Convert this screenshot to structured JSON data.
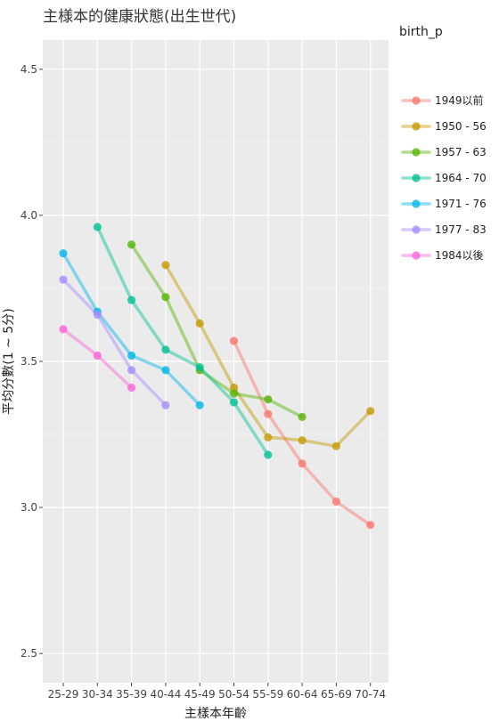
{
  "chart_data": {
    "type": "line",
    "title": "主様本的健康狀態(出生世代)",
    "xlabel": "主樣本年齡",
    "ylabel": "平均分數(1 ~ 5分)",
    "categories": [
      "25-29",
      "30-34",
      "35-39",
      "40-44",
      "45-49",
      "50-54",
      "55-59",
      "60-64",
      "65-69",
      "70-74"
    ],
    "ylim": [
      2.4,
      4.6
    ],
    "yticks": [
      2.5,
      3.0,
      3.5,
      4.0,
      4.5
    ],
    "ytick_labels": [
      "2.5",
      "3.0",
      "3.5",
      "4.0",
      "4.5"
    ],
    "grid": true,
    "legend": {
      "title": "birth_p",
      "placement": "right"
    },
    "series": [
      {
        "name": "1949以前",
        "color": "#F8766D",
        "values": [
          null,
          null,
          null,
          null,
          null,
          3.57,
          3.32,
          3.15,
          3.02,
          2.94
        ]
      },
      {
        "name": "1950 - 56",
        "color": "#C49A00",
        "values": [
          null,
          null,
          null,
          3.83,
          3.63,
          3.41,
          3.24,
          3.23,
          3.21,
          3.33
        ]
      },
      {
        "name": "1957 - 63",
        "color": "#53B400",
        "values": [
          null,
          null,
          3.9,
          3.72,
          3.47,
          3.39,
          3.37,
          3.31,
          null,
          null
        ]
      },
      {
        "name": "1964 - 70",
        "color": "#00C094",
        "values": [
          null,
          3.96,
          3.71,
          3.54,
          3.48,
          3.36,
          3.18,
          null,
          null,
          null
        ]
      },
      {
        "name": "1971 - 76",
        "color": "#00B6EB",
        "values": [
          3.87,
          3.67,
          3.52,
          3.47,
          3.35,
          null,
          null,
          null,
          null,
          null
        ]
      },
      {
        "name": "1977 - 83",
        "color": "#A58AFF",
        "values": [
          3.78,
          3.66,
          3.47,
          3.35,
          null,
          null,
          null,
          null,
          null,
          null
        ]
      },
      {
        "name": "1984以後",
        "color": "#FB61D7",
        "values": [
          3.61,
          3.52,
          3.41,
          null,
          null,
          null,
          null,
          null,
          null,
          null
        ]
      }
    ]
  }
}
